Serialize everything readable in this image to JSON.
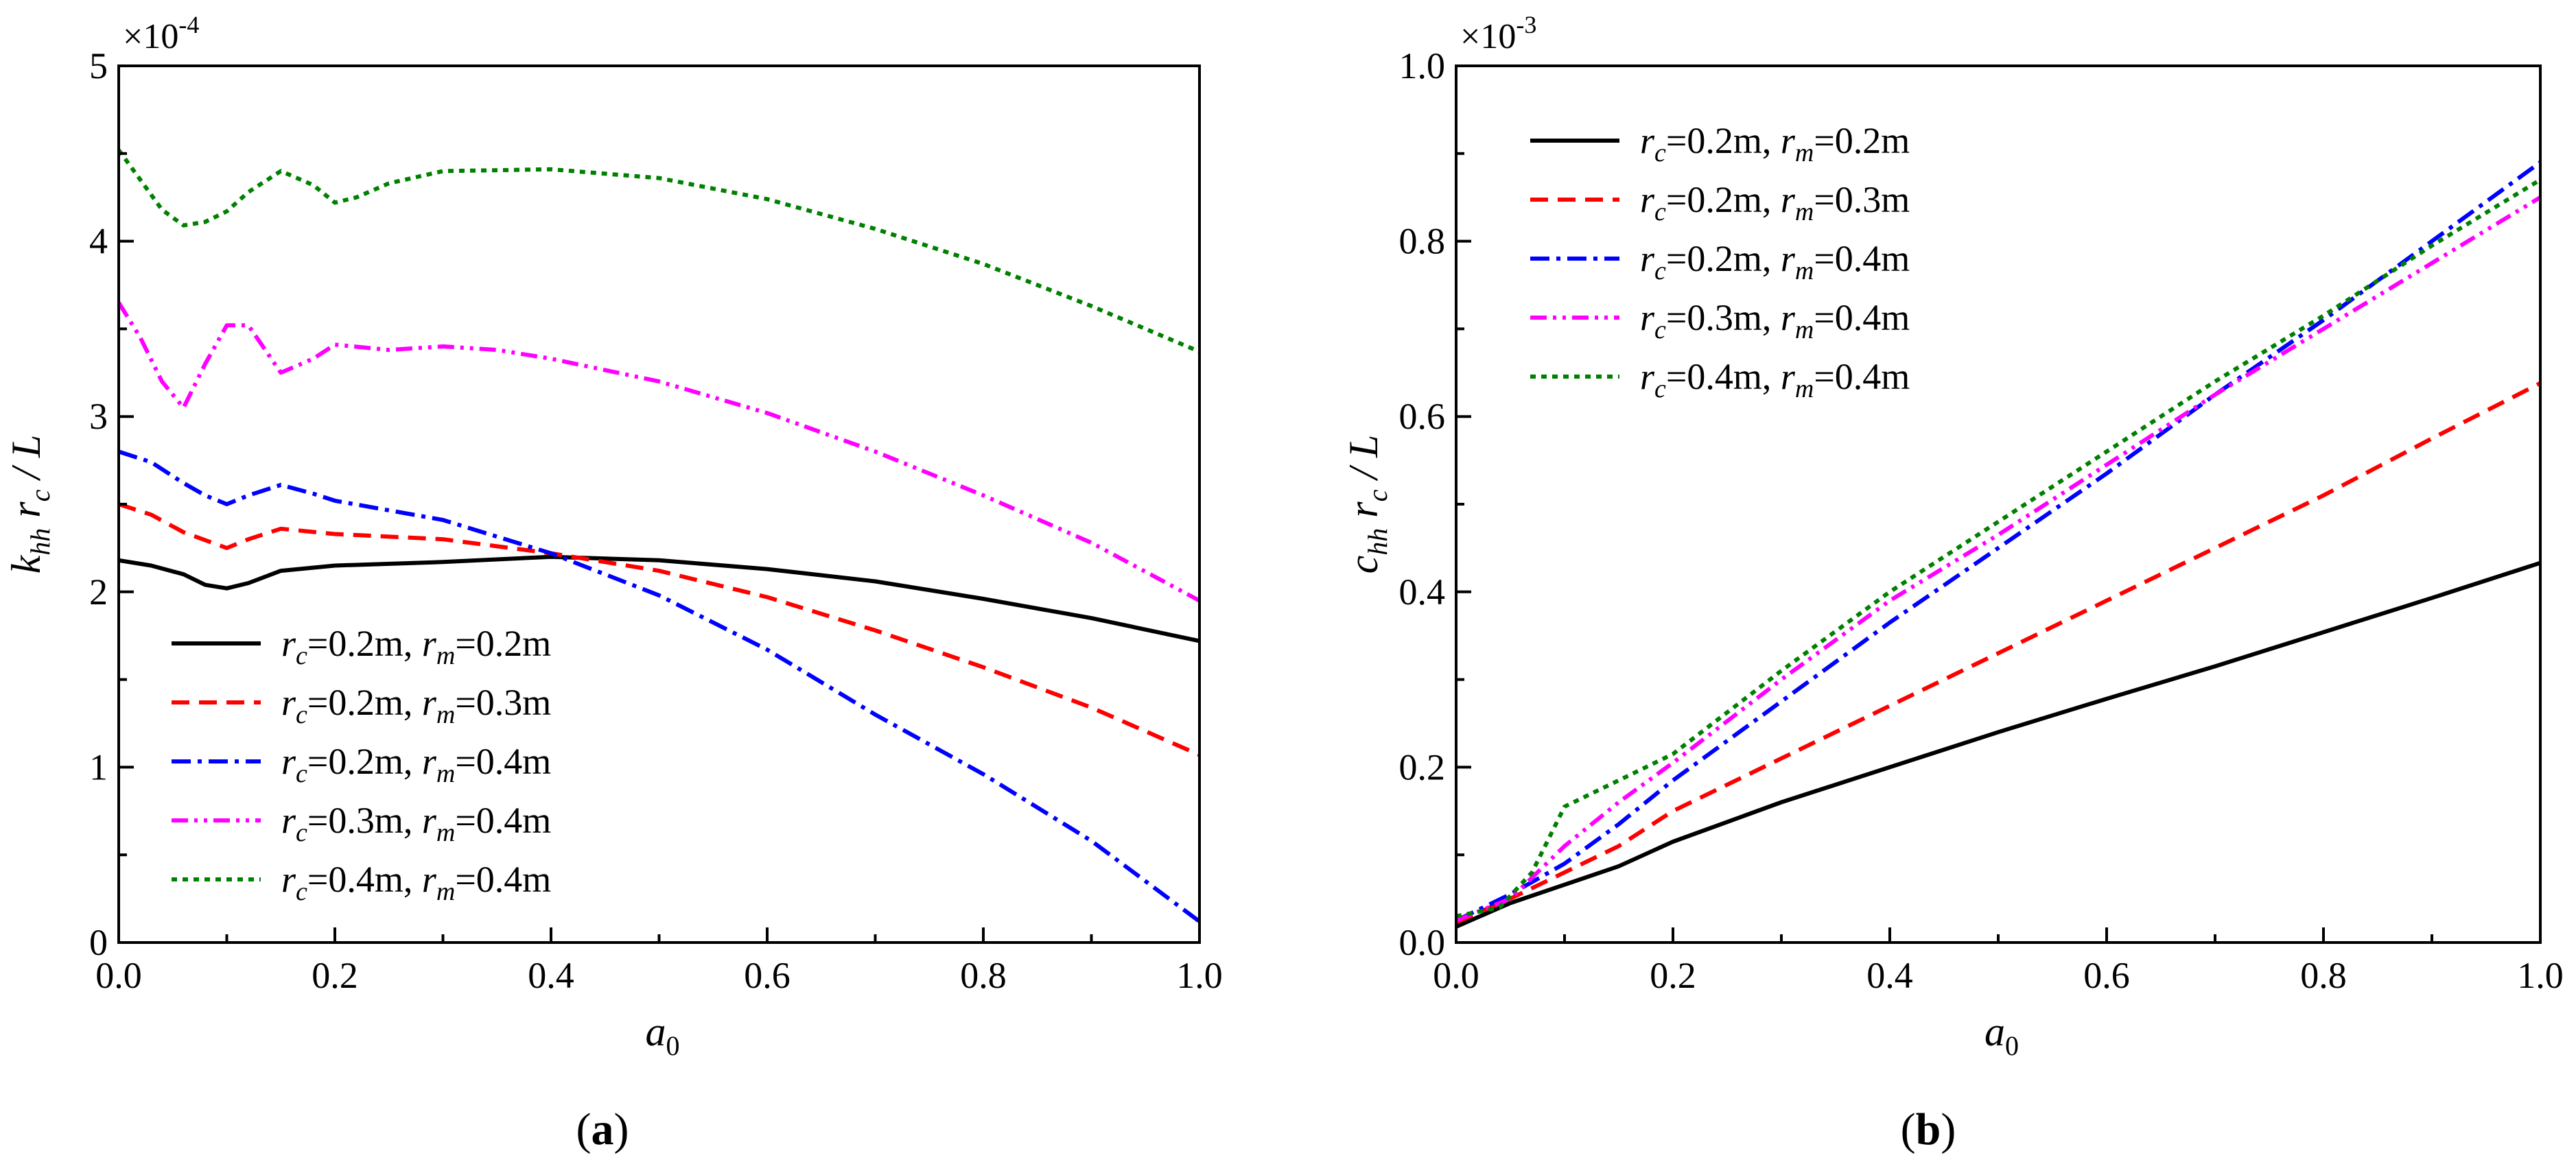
{
  "chart_data": [
    {
      "type": "line",
      "panel_label": "a",
      "panel_caption": "(a)",
      "x_axis": {
        "label_main": "a",
        "label_sub": "0",
        "range": [
          0,
          1
        ],
        "ticks": [
          0,
          0.2,
          0.4,
          0.6,
          0.8,
          1.0
        ],
        "tick_labels": [
          "0.0",
          "0.2",
          "0.4",
          "0.6",
          "0.8",
          "1.0"
        ]
      },
      "y_axis": {
        "label_k": "k",
        "label_k_sub": "hh",
        "label_r": "r",
        "label_r_sub": "c",
        "label_tail": "/ L",
        "range": [
          0,
          5
        ],
        "ticks": [
          0,
          1,
          2,
          3,
          4,
          5
        ],
        "tick_labels": [
          "0",
          "1",
          "2",
          "3",
          "4",
          "5"
        ]
      },
      "scale_base": "×10",
      "scale_exponent": "-4",
      "legend_position": "lower-left",
      "series": [
        {
          "id": "s1",
          "rc": "0.2m",
          "rm": "0.2m",
          "color": "#000000",
          "dash": "solid",
          "points": [
            [
              0,
              2.18
            ],
            [
              0.03,
              2.15
            ],
            [
              0.06,
              2.1
            ],
            [
              0.08,
              2.04
            ],
            [
              0.1,
              2.02
            ],
            [
              0.12,
              2.05
            ],
            [
              0.15,
              2.12
            ],
            [
              0.2,
              2.15
            ],
            [
              0.3,
              2.17
            ],
            [
              0.4,
              2.2
            ],
            [
              0.5,
              2.18
            ],
            [
              0.6,
              2.13
            ],
            [
              0.7,
              2.06
            ],
            [
              0.8,
              1.96
            ],
            [
              0.9,
              1.85
            ],
            [
              1.0,
              1.72
            ]
          ]
        },
        {
          "id": "s2",
          "rc": "0.2m",
          "rm": "0.3m",
          "color": "#ff0000",
          "dash": "dash",
          "points": [
            [
              0,
              2.5
            ],
            [
              0.03,
              2.44
            ],
            [
              0.06,
              2.34
            ],
            [
              0.1,
              2.25
            ],
            [
              0.12,
              2.3
            ],
            [
              0.15,
              2.36
            ],
            [
              0.2,
              2.33
            ],
            [
              0.3,
              2.3
            ],
            [
              0.4,
              2.22
            ],
            [
              0.5,
              2.12
            ],
            [
              0.6,
              1.97
            ],
            [
              0.7,
              1.78
            ],
            [
              0.8,
              1.57
            ],
            [
              0.9,
              1.34
            ],
            [
              1.0,
              1.07
            ]
          ]
        },
        {
          "id": "s3",
          "rc": "0.2m",
          "rm": "0.4m",
          "color": "#0000ff",
          "dash": "dashdot",
          "points": [
            [
              0,
              2.8
            ],
            [
              0.03,
              2.74
            ],
            [
              0.06,
              2.62
            ],
            [
              0.08,
              2.55
            ],
            [
              0.1,
              2.5
            ],
            [
              0.12,
              2.55
            ],
            [
              0.15,
              2.61
            ],
            [
              0.18,
              2.56
            ],
            [
              0.2,
              2.52
            ],
            [
              0.3,
              2.41
            ],
            [
              0.4,
              2.22
            ],
            [
              0.5,
              1.98
            ],
            [
              0.6,
              1.67
            ],
            [
              0.7,
              1.3
            ],
            [
              0.8,
              0.96
            ],
            [
              0.9,
              0.58
            ],
            [
              1.0,
              0.12
            ]
          ]
        },
        {
          "id": "s4",
          "rc": "0.3m",
          "rm": "0.4m",
          "color": "#ff00ff",
          "dash": "dashdotdot",
          "points": [
            [
              0,
              3.65
            ],
            [
              0.02,
              3.45
            ],
            [
              0.04,
              3.2
            ],
            [
              0.06,
              3.05
            ],
            [
              0.08,
              3.3
            ],
            [
              0.1,
              3.52
            ],
            [
              0.12,
              3.52
            ],
            [
              0.15,
              3.25
            ],
            [
              0.18,
              3.33
            ],
            [
              0.2,
              3.41
            ],
            [
              0.25,
              3.38
            ],
            [
              0.3,
              3.4
            ],
            [
              0.35,
              3.38
            ],
            [
              0.4,
              3.33
            ],
            [
              0.5,
              3.2
            ],
            [
              0.6,
              3.02
            ],
            [
              0.7,
              2.8
            ],
            [
              0.8,
              2.55
            ],
            [
              0.9,
              2.28
            ],
            [
              1.0,
              1.95
            ]
          ]
        },
        {
          "id": "s5",
          "rc": "0.4m",
          "rm": "0.4m",
          "color": "#008000",
          "dash": "dot",
          "points": [
            [
              0,
              4.52
            ],
            [
              0.02,
              4.35
            ],
            [
              0.04,
              4.18
            ],
            [
              0.06,
              4.09
            ],
            [
              0.08,
              4.11
            ],
            [
              0.1,
              4.17
            ],
            [
              0.12,
              4.28
            ],
            [
              0.15,
              4.4
            ],
            [
              0.18,
              4.32
            ],
            [
              0.2,
              4.22
            ],
            [
              0.22,
              4.25
            ],
            [
              0.25,
              4.33
            ],
            [
              0.3,
              4.4
            ],
            [
              0.4,
              4.41
            ],
            [
              0.5,
              4.36
            ],
            [
              0.6,
              4.24
            ],
            [
              0.7,
              4.07
            ],
            [
              0.8,
              3.87
            ],
            [
              0.9,
              3.63
            ],
            [
              1.0,
              3.37
            ]
          ]
        }
      ]
    },
    {
      "type": "line",
      "panel_label": "b",
      "panel_caption": "(b)",
      "x_axis": {
        "label_main": "a",
        "label_sub": "0",
        "range": [
          0,
          1
        ],
        "ticks": [
          0,
          0.2,
          0.4,
          0.6,
          0.8,
          1.0
        ],
        "tick_labels": [
          "0.0",
          "0.2",
          "0.4",
          "0.6",
          "0.8",
          "1.0"
        ]
      },
      "y_axis": {
        "label_k": "c",
        "label_k_sub": "hh",
        "label_r": "r",
        "label_r_sub": "c",
        "label_tail": "/ L",
        "range": [
          0,
          1
        ],
        "ticks": [
          0,
          0.2,
          0.4,
          0.6,
          0.8,
          1.0
        ],
        "tick_labels": [
          "0.0",
          "0.2",
          "0.4",
          "0.6",
          "0.8",
          "1.0"
        ]
      },
      "scale_base": "×10",
      "scale_exponent": "-3",
      "legend_position": "upper-left",
      "series": [
        {
          "id": "s1",
          "rc": "0.2m",
          "rm": "0.2m",
          "color": "#000000",
          "dash": "solid",
          "points": [
            [
              0,
              0.018
            ],
            [
              0.05,
              0.045
            ],
            [
              0.1,
              0.066
            ],
            [
              0.15,
              0.087
            ],
            [
              0.2,
              0.115
            ],
            [
              0.3,
              0.16
            ],
            [
              0.4,
              0.2
            ],
            [
              0.5,
              0.24
            ],
            [
              0.6,
              0.278
            ],
            [
              0.7,
              0.315
            ],
            [
              0.8,
              0.354
            ],
            [
              0.9,
              0.393
            ],
            [
              1.0,
              0.433
            ]
          ]
        },
        {
          "id": "s2",
          "rc": "0.2m",
          "rm": "0.3m",
          "color": "#ff0000",
          "dash": "dash",
          "points": [
            [
              0,
              0.023
            ],
            [
              0.05,
              0.05
            ],
            [
              0.1,
              0.08
            ],
            [
              0.15,
              0.11
            ],
            [
              0.2,
              0.15
            ],
            [
              0.3,
              0.21
            ],
            [
              0.4,
              0.27
            ],
            [
              0.5,
              0.33
            ],
            [
              0.6,
              0.39
            ],
            [
              0.7,
              0.45
            ],
            [
              0.8,
              0.51
            ],
            [
              0.9,
              0.575
            ],
            [
              1.0,
              0.638
            ]
          ]
        },
        {
          "id": "s3",
          "rc": "0.2m",
          "rm": "0.4m",
          "color": "#0000ff",
          "dash": "dashdot",
          "points": [
            [
              0,
              0.025
            ],
            [
              0.05,
              0.055
            ],
            [
              0.1,
              0.09
            ],
            [
              0.15,
              0.135
            ],
            [
              0.2,
              0.185
            ],
            [
              0.3,
              0.275
            ],
            [
              0.4,
              0.365
            ],
            [
              0.5,
              0.45
            ],
            [
              0.6,
              0.535
            ],
            [
              0.7,
              0.625
            ],
            [
              0.8,
              0.71
            ],
            [
              0.9,
              0.8
            ],
            [
              1.0,
              0.89
            ]
          ]
        },
        {
          "id": "s4",
          "rc": "0.3m",
          "rm": "0.4m",
          "color": "#ff00ff",
          "dash": "dashdotdot",
          "points": [
            [
              0,
              0.025
            ],
            [
              0.05,
              0.05
            ],
            [
              0.1,
              0.11
            ],
            [
              0.15,
              0.16
            ],
            [
              0.2,
              0.205
            ],
            [
              0.3,
              0.3
            ],
            [
              0.4,
              0.39
            ],
            [
              0.5,
              0.465
            ],
            [
              0.6,
              0.545
            ],
            [
              0.7,
              0.625
            ],
            [
              0.8,
              0.7
            ],
            [
              0.9,
              0.775
            ],
            [
              1.0,
              0.85
            ]
          ]
        },
        {
          "id": "s5",
          "rc": "0.4m",
          "rm": "0.4m",
          "color": "#008000",
          "dash": "dot",
          "points": [
            [
              0,
              0.03
            ],
            [
              0.04,
              0.04
            ],
            [
              0.07,
              0.08
            ],
            [
              0.1,
              0.155
            ],
            [
              0.15,
              0.185
            ],
            [
              0.2,
              0.215
            ],
            [
              0.3,
              0.31
            ],
            [
              0.4,
              0.4
            ],
            [
              0.5,
              0.48
            ],
            [
              0.6,
              0.56
            ],
            [
              0.7,
              0.64
            ],
            [
              0.8,
              0.715
            ],
            [
              0.9,
              0.795
            ],
            [
              1.0,
              0.87
            ]
          ]
        }
      ]
    }
  ]
}
